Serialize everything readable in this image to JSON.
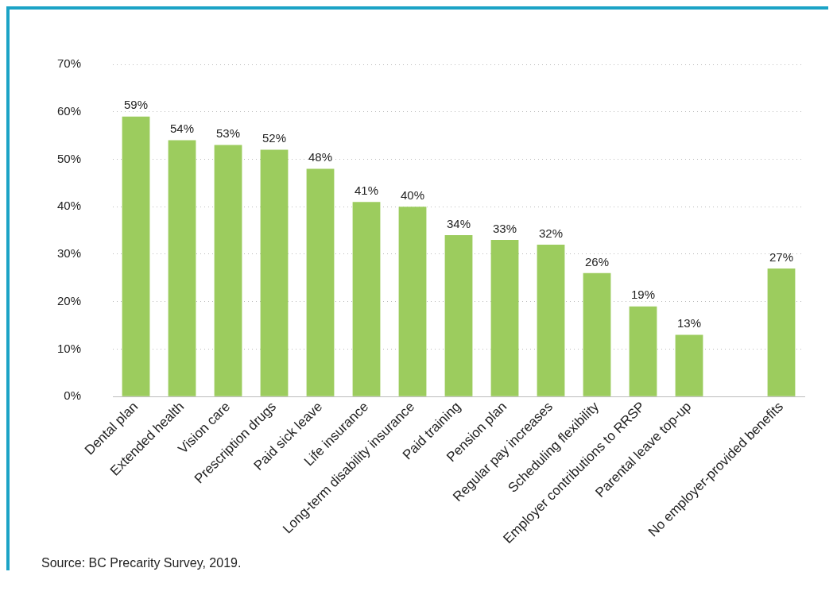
{
  "chart_data": {
    "type": "bar",
    "categories": [
      "Dental plan",
      "Extended health",
      "Vision care",
      "Prescription drugs",
      "Paid sick leave",
      "Life insurance",
      "Long-term disability insurance",
      "Paid training",
      "Pension plan",
      "Regular pay increases",
      "Scheduling flexibility",
      "Employer contributions to RRSP",
      "Parental leave top-up",
      null,
      "No employer-provided benefits"
    ],
    "values": [
      59,
      54,
      53,
      52,
      48,
      41,
      40,
      34,
      33,
      32,
      26,
      19,
      13,
      null,
      27
    ],
    "value_labels": [
      "59%",
      "54%",
      "53%",
      "52%",
      "48%",
      "41%",
      "40%",
      "34%",
      "33%",
      "32%",
      "26%",
      "19%",
      "13%",
      null,
      "27%"
    ],
    "color": "#9ccc5e",
    "ylim": [
      0,
      70
    ],
    "yticks": [
      {
        "value": 0,
        "label": "0%"
      },
      {
        "value": 10,
        "label": "10%"
      },
      {
        "value": 20,
        "label": "20%"
      },
      {
        "value": 30,
        "label": "30%"
      },
      {
        "value": 40,
        "label": "40%"
      },
      {
        "value": 50,
        "label": "50%"
      },
      {
        "value": 60,
        "label": "60%"
      },
      {
        "value": 70,
        "label": "70%"
      }
    ],
    "grid": "y",
    "legend": false,
    "annotations": [
      "Source: BC Precarity Survey, 2019."
    ]
  }
}
